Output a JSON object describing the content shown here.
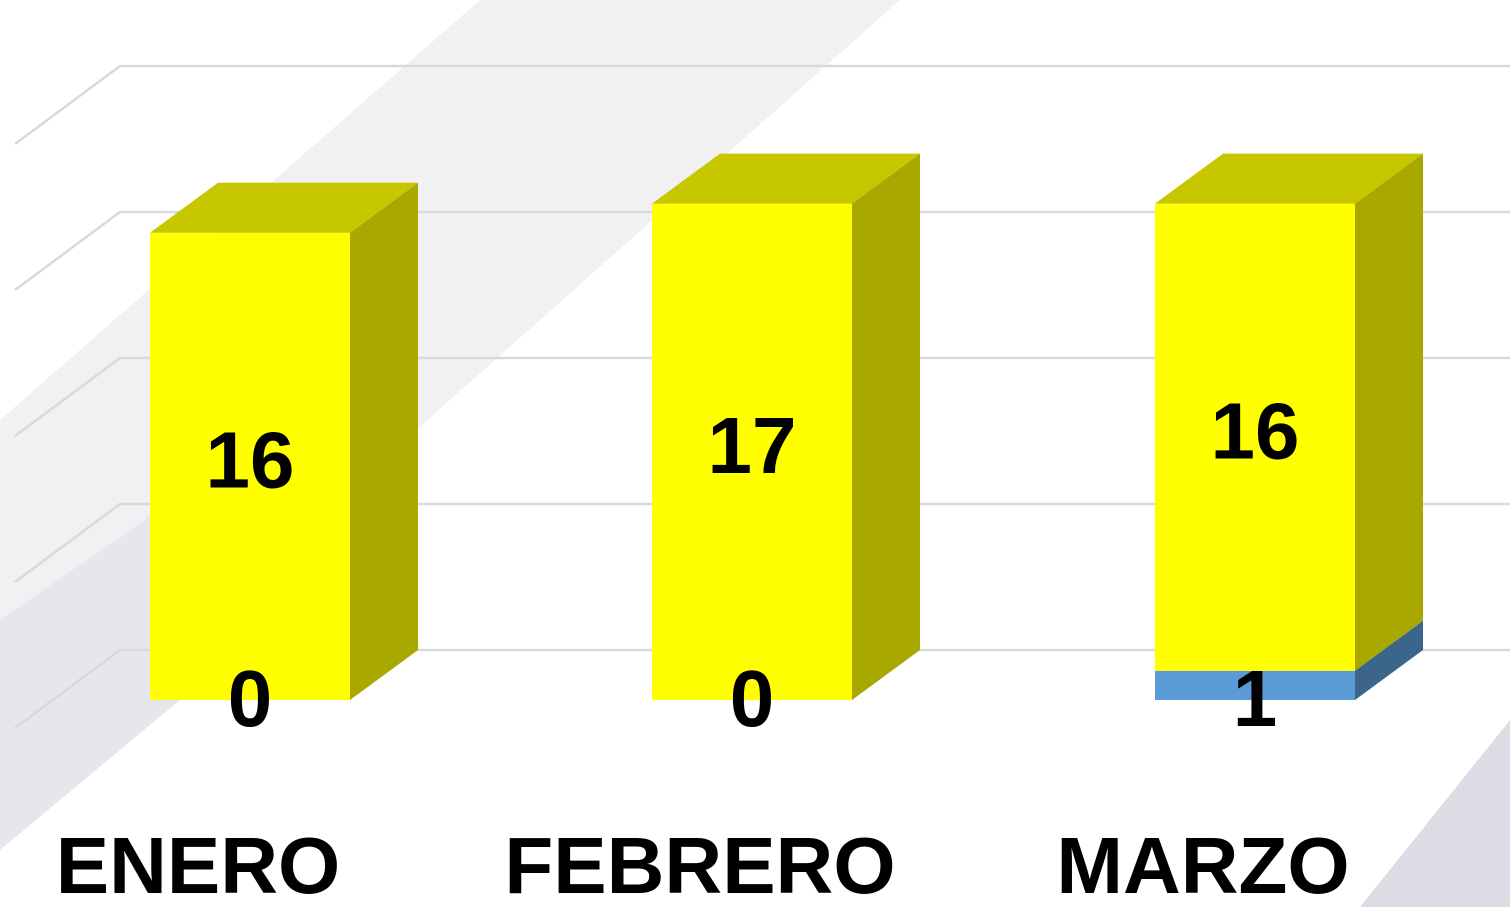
{
  "chart_data": {
    "type": "bar3d_stacked",
    "categories": [
      "ENERO",
      "FEBRERO",
      "MARZO"
    ],
    "series": [
      {
        "color": "#5b9bd5",
        "values": [
          0,
          0,
          1
        ]
      },
      {
        "color": "#ffff00",
        "values": [
          16,
          17,
          16
        ]
      }
    ],
    "ylim": [
      0,
      25
    ],
    "yticks": [
      0,
      5,
      10,
      15,
      20,
      25
    ],
    "grid": true
  }
}
